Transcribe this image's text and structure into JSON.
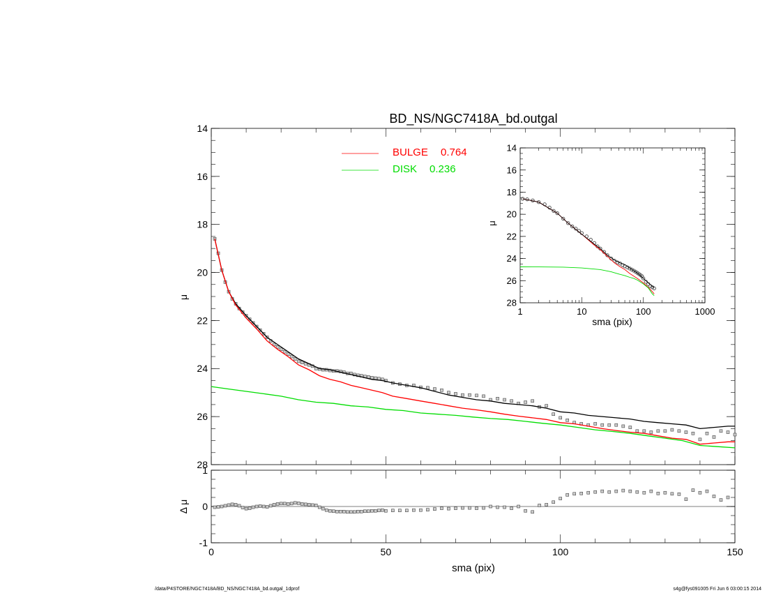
{
  "chart_data": [
    {
      "type": "scatter",
      "title": "BD_NS/NGC7418A_bd.outgal",
      "xlabel": "",
      "ylabel": "μ",
      "xlim": [
        0,
        150
      ],
      "ylim": [
        28,
        14
      ],
      "y_ticks": [
        "14",
        "16",
        "18",
        "20",
        "22",
        "24",
        "26",
        "28"
      ],
      "legend": [
        {
          "label": "BULGE",
          "value": "0.764",
          "color": "#ff0000"
        },
        {
          "label": "DISK",
          "value": "0.236",
          "color": "#00dd00"
        }
      ],
      "legend_placement": "top-center",
      "series": [
        {
          "name": "data",
          "marker": "square",
          "color": "#000000",
          "x": [
            1,
            2,
            3,
            4,
            5,
            6,
            7,
            8,
            9,
            10,
            11,
            12,
            13,
            14,
            15,
            16,
            17,
            18,
            19,
            20,
            21,
            22,
            23,
            24,
            25,
            26,
            27,
            28,
            29,
            30,
            31,
            32,
            33,
            34,
            35,
            36,
            37,
            38,
            39,
            40,
            41,
            42,
            43,
            44,
            45,
            46,
            47,
            48,
            49,
            50,
            52,
            54,
            56,
            58,
            60,
            62,
            64,
            66,
            68,
            70,
            72,
            74,
            76,
            78,
            80,
            82,
            84,
            86,
            88,
            90,
            92,
            94,
            96,
            98,
            100,
            102,
            104,
            106,
            108,
            110,
            112,
            114,
            116,
            118,
            120,
            122,
            124,
            126,
            128,
            130,
            132,
            134,
            136,
            138,
            140,
            142,
            144,
            146,
            148,
            150
          ],
          "y": [
            18.6,
            19.2,
            19.9,
            20.4,
            20.8,
            21.1,
            21.3,
            21.5,
            21.65,
            21.8,
            21.95,
            22.1,
            22.25,
            22.4,
            22.55,
            22.7,
            22.85,
            23.0,
            23.1,
            23.2,
            23.3,
            23.4,
            23.5,
            23.6,
            23.7,
            23.75,
            23.8,
            23.85,
            23.9,
            24.0,
            24.02,
            24.05,
            24.05,
            24.08,
            24.1,
            24.1,
            24.12,
            24.15,
            24.2,
            24.2,
            24.25,
            24.28,
            24.3,
            24.33,
            24.35,
            24.38,
            24.4,
            24.42,
            24.45,
            24.5,
            24.6,
            24.65,
            24.7,
            24.7,
            24.78,
            24.8,
            24.85,
            24.9,
            25.0,
            25.05,
            25.1,
            25.1,
            25.12,
            25.15,
            25.3,
            25.25,
            25.3,
            25.35,
            25.45,
            25.4,
            25.35,
            25.6,
            25.55,
            25.9,
            26.05,
            26.15,
            26.25,
            26.3,
            26.35,
            26.3,
            26.35,
            26.35,
            26.35,
            26.4,
            26.45,
            26.6,
            26.6,
            26.65,
            26.6,
            26.6,
            26.55,
            26.6,
            26.65,
            26.7,
            26.95,
            26.7,
            26.85,
            26.6,
            26.65,
            26.75
          ]
        },
        {
          "name": "model",
          "style": "line",
          "color": "#000000",
          "x": [
            1,
            3,
            5,
            7,
            10,
            13,
            16,
            19,
            22,
            25,
            28,
            31,
            34,
            37,
            40,
            43,
            46,
            49,
            52,
            56,
            60,
            64,
            68,
            72,
            76,
            80,
            84,
            88,
            92,
            96,
            100,
            104,
            108,
            112,
            116,
            120,
            124,
            128,
            132,
            136,
            140,
            144,
            148,
            150
          ],
          "y": [
            18.6,
            19.9,
            20.8,
            21.3,
            21.8,
            22.25,
            22.7,
            23.0,
            23.3,
            23.6,
            23.8,
            24.0,
            24.05,
            24.15,
            24.25,
            24.35,
            24.45,
            24.5,
            24.6,
            24.7,
            24.8,
            24.95,
            25.1,
            25.2,
            25.3,
            25.35,
            25.45,
            25.5,
            25.55,
            25.65,
            25.8,
            25.85,
            25.95,
            26.0,
            26.05,
            26.1,
            26.2,
            26.25,
            26.3,
            26.35,
            26.5,
            26.45,
            26.4,
            26.4
          ]
        },
        {
          "name": "bulge",
          "style": "line",
          "color": "#ff0000",
          "x": [
            1,
            3,
            5,
            7,
            10,
            13,
            16,
            19,
            22,
            25,
            28,
            31,
            34,
            37,
            40,
            43,
            46,
            49,
            52,
            56,
            60,
            64,
            68,
            72,
            76,
            80,
            84,
            88,
            92,
            96,
            100,
            104,
            108,
            112,
            116,
            120,
            124,
            128,
            132,
            136,
            140,
            144,
            148,
            150
          ],
          "y": [
            18.6,
            19.9,
            20.8,
            21.35,
            21.9,
            22.35,
            22.85,
            23.2,
            23.5,
            23.85,
            24.05,
            24.3,
            24.45,
            24.55,
            24.7,
            24.8,
            24.9,
            25.0,
            25.15,
            25.25,
            25.35,
            25.45,
            25.55,
            25.65,
            25.72,
            25.8,
            25.9,
            25.98,
            26.05,
            26.12,
            26.25,
            26.3,
            26.4,
            26.5,
            26.58,
            26.65,
            26.7,
            26.8,
            26.9,
            26.95,
            27.15,
            27.1,
            27.05,
            27.05
          ]
        },
        {
          "name": "disk",
          "style": "line",
          "color": "#00dd00",
          "x": [
            0,
            5,
            10,
            15,
            20,
            25,
            30,
            35,
            40,
            45,
            50,
            55,
            60,
            65,
            70,
            75,
            80,
            85,
            90,
            95,
            100,
            105,
            110,
            115,
            120,
            125,
            130,
            135,
            140,
            145,
            150
          ],
          "y": [
            24.75,
            24.85,
            24.95,
            25.05,
            25.15,
            25.3,
            25.4,
            25.45,
            25.55,
            25.6,
            25.7,
            25.75,
            25.85,
            25.9,
            25.95,
            26.02,
            26.08,
            26.12,
            26.2,
            26.28,
            26.35,
            26.45,
            26.55,
            26.62,
            26.7,
            26.8,
            26.9,
            27.0,
            27.2,
            27.25,
            27.3
          ]
        }
      ]
    },
    {
      "type": "scatter",
      "xlabel": "sma (pix)",
      "ylabel": "Δ μ",
      "xlim": [
        0,
        150
      ],
      "ylim": [
        -1,
        1
      ],
      "x_ticks": [
        "0",
        "50",
        "100",
        "150"
      ],
      "y_ticks": [
        "1",
        "0",
        "-1"
      ],
      "series": [
        {
          "name": "residual",
          "marker": "square",
          "color": "#000000",
          "x": [
            1,
            2,
            3,
            4,
            5,
            6,
            7,
            8,
            9,
            10,
            11,
            12,
            13,
            14,
            15,
            16,
            17,
            18,
            19,
            20,
            21,
            22,
            23,
            24,
            25,
            26,
            27,
            28,
            29,
            30,
            31,
            32,
            33,
            34,
            35,
            36,
            37,
            38,
            39,
            40,
            41,
            42,
            43,
            44,
            45,
            46,
            47,
            48,
            49,
            50,
            52,
            54,
            56,
            58,
            60,
            62,
            64,
            66,
            68,
            70,
            72,
            74,
            76,
            78,
            80,
            82,
            84,
            86,
            88,
            90,
            92,
            94,
            96,
            98,
            100,
            102,
            104,
            106,
            108,
            110,
            112,
            114,
            116,
            118,
            120,
            122,
            124,
            126,
            128,
            130,
            132,
            134,
            136,
            138,
            140,
            142,
            144,
            146,
            148
          ],
          "y": [
            -0.02,
            -0.01,
            0.0,
            0.02,
            0.04,
            0.06,
            0.05,
            0.02,
            -0.03,
            -0.06,
            -0.05,
            -0.02,
            0.0,
            0.01,
            0.0,
            -0.01,
            0.02,
            0.05,
            0.07,
            0.08,
            0.08,
            0.07,
            0.08,
            0.1,
            0.09,
            0.07,
            0.06,
            0.05,
            0.04,
            0.03,
            -0.02,
            -0.06,
            -0.1,
            -0.12,
            -0.13,
            -0.14,
            -0.14,
            -0.14,
            -0.15,
            -0.15,
            -0.15,
            -0.14,
            -0.14,
            -0.13,
            -0.13,
            -0.12,
            -0.12,
            -0.11,
            -0.1,
            -0.12,
            -0.11,
            -0.11,
            -0.11,
            -0.1,
            -0.1,
            -0.09,
            -0.07,
            -0.05,
            -0.06,
            -0.05,
            -0.04,
            -0.04,
            -0.05,
            -0.04,
            0.0,
            -0.02,
            -0.02,
            -0.05,
            0.0,
            -0.12,
            -0.15,
            0.03,
            0.05,
            0.12,
            0.22,
            0.32,
            0.35,
            0.36,
            0.38,
            0.4,
            0.42,
            0.4,
            0.42,
            0.44,
            0.42,
            0.4,
            0.38,
            0.42,
            0.36,
            0.38,
            0.35,
            0.34,
            0.2,
            0.45,
            0.38,
            0.42,
            0.28,
            0.18,
            0.25
          ]
        }
      ]
    },
    {
      "type": "scatter",
      "xlabel": "sma (pix)",
      "ylabel": "μ",
      "x_scale": "log",
      "xlim": [
        1,
        1000
      ],
      "ylim": [
        28,
        14
      ],
      "x_ticks": [
        "1",
        "10",
        "100",
        "1000"
      ],
      "y_ticks": [
        "14",
        "16",
        "18",
        "20",
        "22",
        "24",
        "26",
        "28"
      ],
      "series": [
        {
          "name": "data",
          "marker": "circle",
          "color": "#000000",
          "x": [
            1.1,
            1.3,
            1.6,
            2,
            2.5,
            3,
            3.5,
            4,
            5,
            6,
            7,
            8,
            9,
            10,
            12,
            14,
            16,
            18,
            20,
            23,
            26,
            30,
            34,
            38,
            42,
            46,
            50,
            55,
            60,
            65,
            70,
            75,
            80,
            85,
            90,
            95,
            100,
            110,
            120,
            130,
            140,
            150
          ],
          "y": [
            18.6,
            18.65,
            18.75,
            18.9,
            19.1,
            19.4,
            19.7,
            19.9,
            20.4,
            20.8,
            21.1,
            21.3,
            21.5,
            21.7,
            22.0,
            22.3,
            22.6,
            22.9,
            23.1,
            23.4,
            23.7,
            24.0,
            24.2,
            24.35,
            24.45,
            24.6,
            24.7,
            24.8,
            24.9,
            25.0,
            25.1,
            25.2,
            25.3,
            25.4,
            25.5,
            25.6,
            25.8,
            26.1,
            26.3,
            26.5,
            26.6,
            26.7
          ]
        },
        {
          "name": "bulge",
          "style": "line",
          "color": "#ff0000",
          "x": [
            1.1,
            2,
            4,
            6,
            10,
            16,
            20,
            26,
            34,
            42,
            50,
            60,
            70,
            80,
            100,
            120,
            140,
            150
          ],
          "y": [
            18.6,
            18.9,
            19.9,
            20.8,
            21.8,
            22.8,
            23.2,
            23.8,
            24.4,
            24.75,
            25.0,
            25.35,
            25.6,
            25.8,
            26.2,
            26.6,
            27.0,
            27.2
          ]
        },
        {
          "name": "disk",
          "style": "line",
          "color": "#00dd00",
          "x": [
            1,
            2,
            5,
            10,
            20,
            30,
            40,
            50,
            60,
            70,
            80,
            100,
            120,
            140,
            150
          ],
          "y": [
            24.75,
            24.76,
            24.78,
            24.85,
            25.0,
            25.2,
            25.4,
            25.55,
            25.7,
            25.8,
            25.95,
            26.3,
            26.65,
            27.2,
            27.35
          ]
        },
        {
          "name": "model",
          "style": "line",
          "color": "#000000",
          "x": [
            1.1,
            2,
            4,
            6,
            10,
            16,
            20,
            26,
            34,
            42,
            50,
            60,
            70,
            80,
            100,
            120,
            140,
            150
          ],
          "y": [
            18.6,
            18.9,
            19.9,
            20.8,
            21.8,
            22.7,
            23.1,
            23.7,
            24.15,
            24.4,
            24.55,
            24.85,
            25.1,
            25.3,
            25.8,
            26.2,
            26.5,
            26.6
          ]
        }
      ]
    }
  ],
  "footer": {
    "left": "/data/P4STORE/NGC7418A/BD_NS/NGC7418A_bd.outgal_1dprof",
    "right": "s4g@fys091005  Fri Jun  6 03:00:15 2014"
  }
}
